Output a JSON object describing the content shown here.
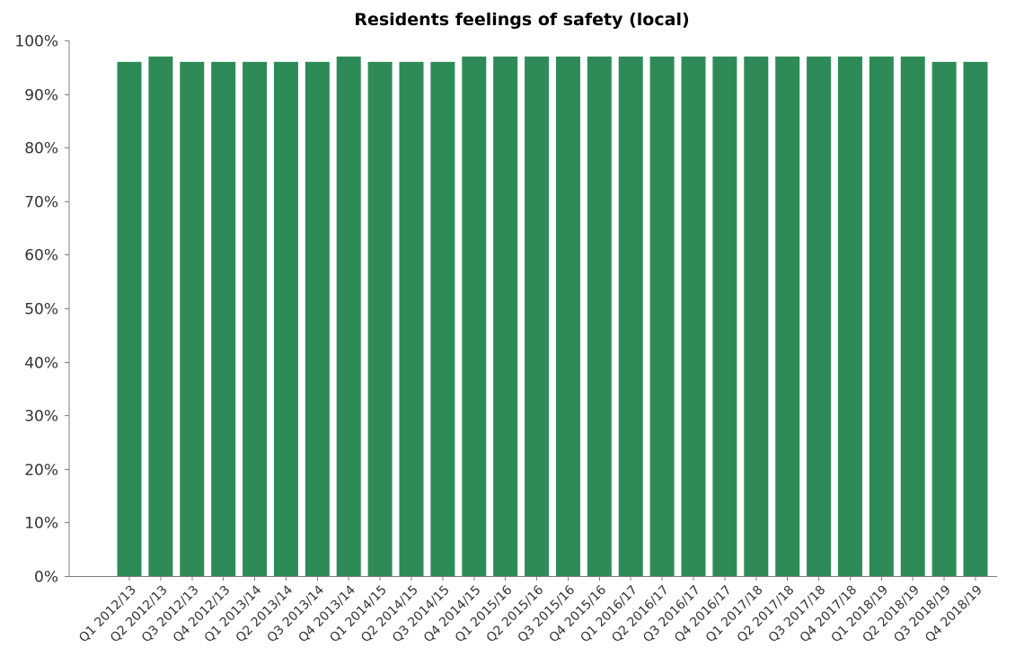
{
  "chart_data": {
    "type": "bar",
    "title": "Residents feelings of safety (local)",
    "xlabel": "",
    "ylabel": "",
    "ylim": [
      0,
      100
    ],
    "y_tick_labels": [
      "0%",
      "10%",
      "20%",
      "30%",
      "40%",
      "50%",
      "60%",
      "70%",
      "80%",
      "90%",
      "100%"
    ],
    "grid": false,
    "legend": "none",
    "bar_color": "#2e8b57",
    "categories": [
      "Q1 2012/13",
      "Q2 2012/13",
      "Q3 2012/13",
      "Q4 2012/13",
      "Q1 2013/14",
      "Q2 2013/14",
      "Q3 2013/14",
      "Q4 2013/14",
      "Q1 2014/15",
      "Q2 2014/15",
      "Q3 2014/15",
      "Q4 2014/15",
      "Q1 2015/16",
      "Q2 2015/16",
      "Q3 2015/16",
      "Q4 2015/16",
      "Q1 2016/17",
      "Q2 2016/17",
      "Q3 2016/17",
      "Q4 2016/17",
      "Q1 2017/18",
      "Q2 2017/18",
      "Q3 2017/18",
      "Q4 2017/18",
      "Q1 2018/19",
      "Q2 2018/19",
      "Q3 2018/19",
      "Q4 2018/19"
    ],
    "values": [
      96,
      97,
      96,
      96,
      96,
      96,
      96,
      97,
      96,
      96,
      96,
      97,
      97,
      97,
      97,
      97,
      97,
      97,
      97,
      97,
      97,
      97,
      97,
      97,
      97,
      97,
      96,
      96
    ]
  }
}
